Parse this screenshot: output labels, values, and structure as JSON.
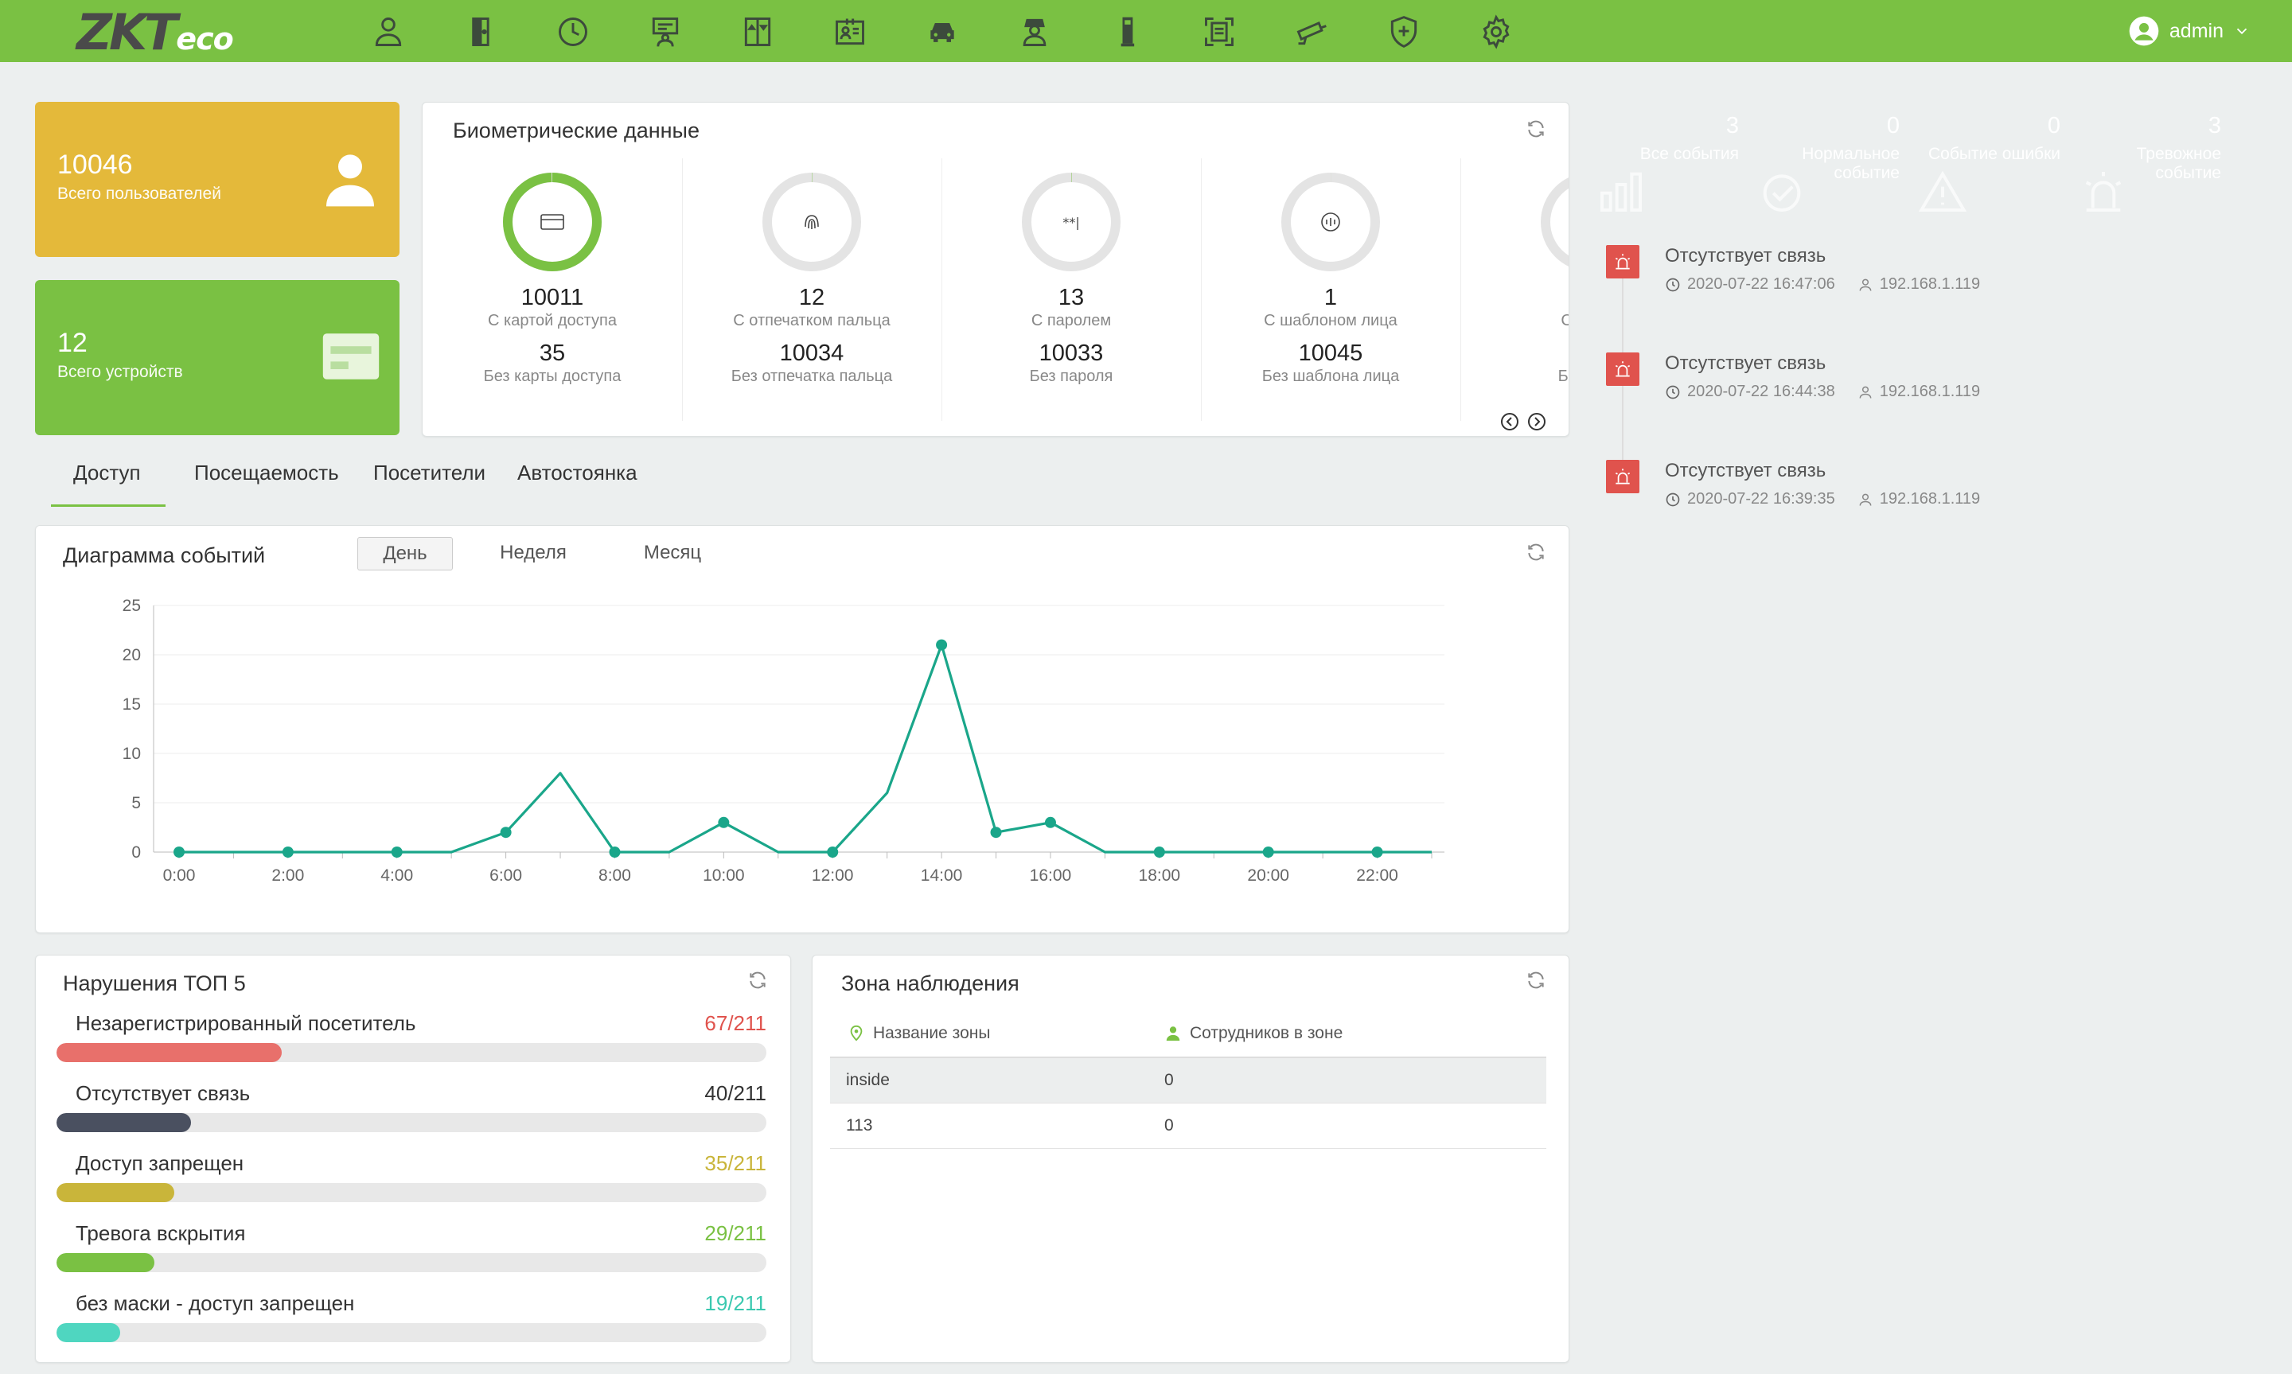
{
  "app": {
    "logo_main": "ZKT",
    "logo_sub": "eco",
    "user": "admin",
    "nav_icons": [
      "person-icon",
      "door-icon",
      "clock-icon",
      "meeting-icon",
      "elevator-icon",
      "visitor-card-icon",
      "car-icon",
      "guard-icon",
      "device-icon",
      "face-scan-icon",
      "cctv-icon",
      "shield-icon",
      "gear-icon"
    ]
  },
  "stats": {
    "users": {
      "value": "10046",
      "label": "Всего пользователей",
      "color": "#e4b93a"
    },
    "devices": {
      "value": "12",
      "label": "Всего устройств",
      "color": "#7ac143"
    }
  },
  "bio": {
    "title": "Биометрические данные",
    "columns": [
      {
        "with_value": "10011",
        "with_label": "С картой доступа",
        "without_value": "35",
        "without_label": "Без карты доступа",
        "fraction": 0.9965,
        "icon": "card-icon"
      },
      {
        "with_value": "12",
        "with_label": "С отпечатком пальца",
        "without_value": "10034",
        "without_label": "Без отпечатка пальца",
        "fraction": 0.0012,
        "icon": "fingerprint-icon"
      },
      {
        "with_value": "13",
        "with_label": "С паролем",
        "without_value": "10033",
        "without_label": "Без пароля",
        "fraction": 0.0013,
        "icon": "password-icon"
      },
      {
        "with_value": "1",
        "with_label": "С шаблоном лица",
        "without_value": "10045",
        "without_label": "Без шаблона лица",
        "fraction": 0.0001,
        "icon": "face-icon"
      },
      {
        "with_value": "",
        "with_label": "С рисун",
        "without_value": "",
        "without_label": "Без рису",
        "fraction": 0,
        "icon": "palm-icon"
      }
    ]
  },
  "tabs": [
    "Доступ",
    "Посещаемость",
    "Посетители",
    "Автостоянка"
  ],
  "events": {
    "title": "Диаграмма событий",
    "periods": [
      "День",
      "Неделя",
      "Месяц"
    ]
  },
  "chart_data": {
    "type": "line",
    "title": "Диаграмма событий",
    "xlabel": "",
    "ylabel": "",
    "x": [
      "0:00",
      "1:00",
      "2:00",
      "3:00",
      "4:00",
      "5:00",
      "6:00",
      "7:00",
      "8:00",
      "9:00",
      "10:00",
      "11:00",
      "12:00",
      "13:00",
      "14:00",
      "15:00",
      "16:00",
      "17:00",
      "18:00",
      "19:00",
      "20:00",
      "21:00",
      "22:00",
      "23:00"
    ],
    "values": [
      0,
      0,
      0,
      0,
      0,
      0,
      2,
      8,
      0,
      0,
      3,
      0,
      0,
      6,
      21,
      2,
      3,
      0,
      0,
      0,
      0,
      0,
      0,
      0
    ],
    "x_tick_labels": [
      "0:00",
      "2:00",
      "4:00",
      "6:00",
      "8:00",
      "10:00",
      "12:00",
      "14:00",
      "16:00",
      "18:00",
      "20:00",
      "22:00"
    ],
    "y_ticks": [
      "0",
      "5",
      "10",
      "15",
      "20",
      "25"
    ],
    "ylim": [
      0,
      25
    ],
    "color": "#1aa68a"
  },
  "violations": {
    "title": "Нарушения ТОП 5",
    "items": [
      {
        "name": "Незарегистрированный посетитель",
        "count": "67/211",
        "value": 67,
        "color": "#e8706b",
        "text_color": "#e0534d"
      },
      {
        "name": "Отсутствует связь",
        "count": "40/211",
        "value": 40,
        "color": "#4a5060",
        "text_color": "#333333"
      },
      {
        "name": "Доступ запрещен",
        "count": "35/211",
        "value": 35,
        "color": "#c9b53a",
        "text_color": "#c9b53a"
      },
      {
        "name": "Тревога вскрытия",
        "count": "29/211",
        "value": 29,
        "color": "#7ac143",
        "text_color": "#7ac143"
      },
      {
        "name": "без маски - доступ запрещен",
        "count": "19/211",
        "value": 19,
        "color": "#4fd6c0",
        "text_color": "#3bc9b0"
      }
    ],
    "total": 211
  },
  "zone": {
    "title": "Зона наблюдения",
    "col_zone": "Название зоны",
    "col_staff": "Сотрудников в зоне",
    "rows": [
      {
        "zone": "inside",
        "staff": "0"
      },
      {
        "zone": "113",
        "staff": "0"
      }
    ]
  },
  "event_tiles": [
    {
      "count": "3",
      "label": "Все события",
      "color": "#4db3e6",
      "icon": "bar-chart-icon"
    },
    {
      "count": "0",
      "label": "Нормальное событие",
      "color": "#7ac143",
      "icon": "check-circle-icon"
    },
    {
      "count": "0",
      "label": "Событие ошибки",
      "color": "#c9b53a",
      "icon": "warning-icon"
    },
    {
      "count": "3",
      "label": "Тревожное событие",
      "color": "#e0534d",
      "icon": "alarm-icon"
    }
  ],
  "alarms": [
    {
      "text": "Отсутствует связь",
      "time": "2020-07-22 16:47:06",
      "ip": "192.168.1.119"
    },
    {
      "text": "Отсутствует связь",
      "time": "2020-07-22 16:44:38",
      "ip": "192.168.1.119"
    },
    {
      "text": "Отсутствует связь",
      "time": "2020-07-22 16:39:35",
      "ip": "192.168.1.119"
    }
  ]
}
